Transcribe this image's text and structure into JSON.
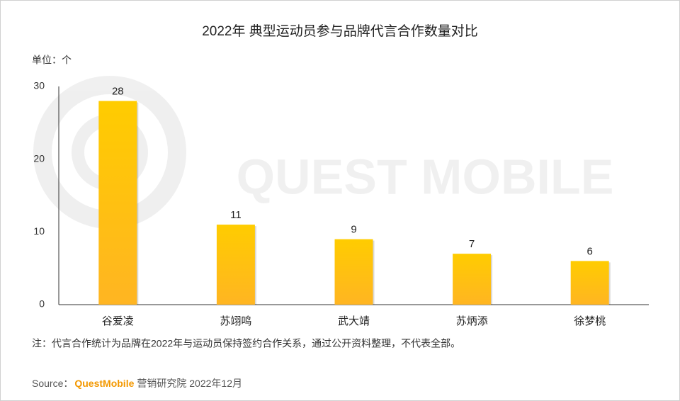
{
  "chart_data": {
    "type": "bar",
    "title": "2022年 典型运动员参与品牌代言合作数量对比",
    "unit": "单位：个",
    "categories": [
      "谷爱凌",
      "苏翊鸣",
      "武大靖",
      "苏炳添",
      "徐梦桃"
    ],
    "values": [
      28,
      11,
      9,
      7,
      6
    ],
    "color": "#ffc107",
    "ylim": [
      0,
      30
    ],
    "yticks": [
      0,
      10,
      20,
      30
    ],
    "grid": false,
    "watermark": "QUEST MOBILE"
  },
  "note": "注：代言合作统计为品牌在2022年与运动员保持签约合作关系，通过公开资料整理，不代表全部。",
  "source": {
    "prefix": "Source：",
    "brand": "QuestMobile",
    "suffix": "营销研究院 2022年12月"
  }
}
